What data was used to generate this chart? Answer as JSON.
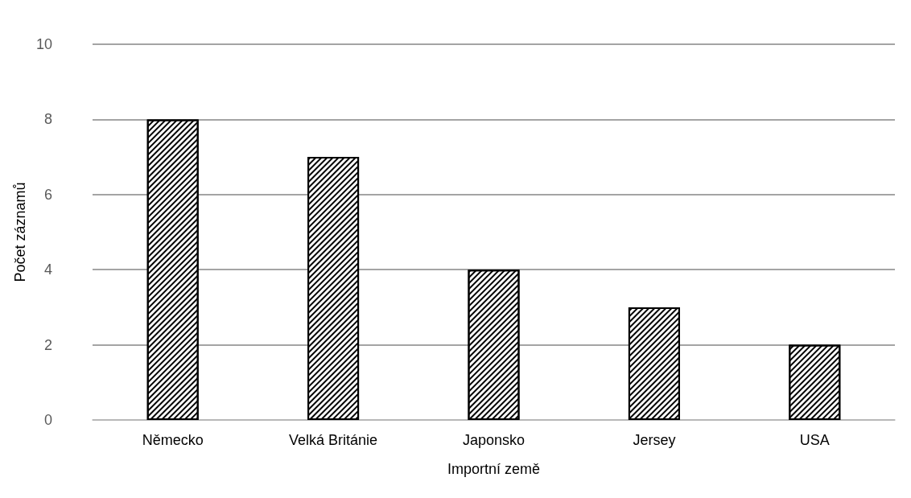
{
  "chart_data": {
    "type": "bar",
    "xlabel": "Importní země",
    "ylabel": "Počet záznamů",
    "categories": [
      "Německo",
      "Velká Británie",
      "Japonsko",
      "Jersey",
      "USA"
    ],
    "values": [
      8,
      7,
      4,
      3,
      2
    ],
    "color": "#ffffff",
    "ylim": [
      0,
      10
    ],
    "yticks": [
      0,
      2,
      4,
      6,
      8,
      10
    ],
    "grid": "y"
  }
}
